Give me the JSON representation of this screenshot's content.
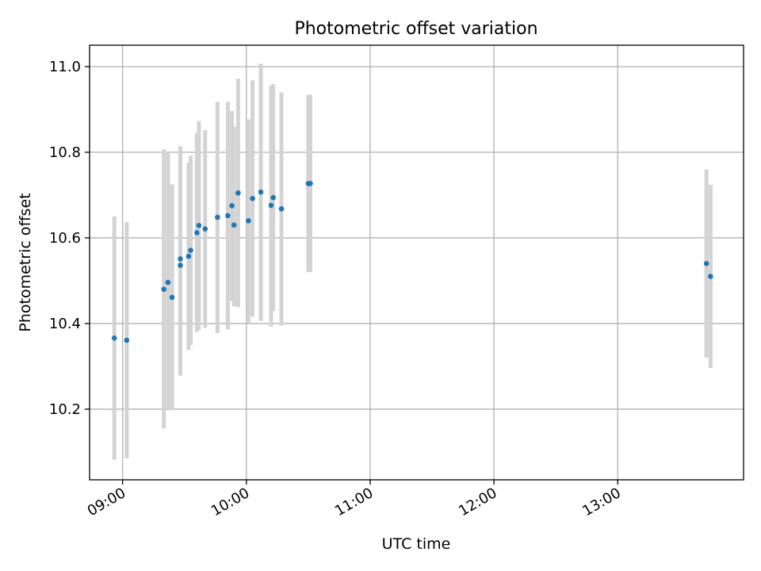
{
  "chart_data": {
    "type": "scatter",
    "title": "Photometric offset variation",
    "xlabel": "UTC time",
    "ylabel": "Photometric offset",
    "x_axis_kind": "time",
    "xlim": [
      "08:44",
      "14:01"
    ],
    "ylim": [
      10.035,
      11.05
    ],
    "xticks": [
      "09:00",
      "10:00",
      "11:00",
      "12:00",
      "13:00"
    ],
    "yticks": [
      "10.2",
      "10.4",
      "10.6",
      "10.8",
      "11.0"
    ],
    "grid": true,
    "marker_color": "#1f77b4",
    "errorbar_color": "#d3d3d3",
    "points": [
      {
        "t": "08:56",
        "y": 10.366,
        "lo": 10.082,
        "hi": 10.65
      },
      {
        "t": "09:02",
        "y": 10.361,
        "lo": 10.085,
        "hi": 10.637
      },
      {
        "t": "09:20",
        "y": 10.48,
        "lo": 10.155,
        "hi": 10.807
      },
      {
        "t": "09:22",
        "y": 10.496,
        "lo": 10.2,
        "hi": 10.798
      },
      {
        "t": "09:24",
        "y": 10.461,
        "lo": 10.197,
        "hi": 10.725
      },
      {
        "t": "09:28",
        "y": 10.536,
        "lo": 10.278,
        "hi": 10.814
      },
      {
        "t": "09:28",
        "y": 10.551,
        "lo": 10.31,
        "hi": 10.792
      },
      {
        "t": "09:32",
        "y": 10.557,
        "lo": 10.338,
        "hi": 10.776
      },
      {
        "t": "09:33",
        "y": 10.571,
        "lo": 10.35,
        "hi": 10.792
      },
      {
        "t": "09:36",
        "y": 10.612,
        "lo": 10.38,
        "hi": 10.845
      },
      {
        "t": "09:37",
        "y": 10.629,
        "lo": 10.385,
        "hi": 10.873
      },
      {
        "t": "09:40",
        "y": 10.621,
        "lo": 10.39,
        "hi": 10.852
      },
      {
        "t": "09:46",
        "y": 10.648,
        "lo": 10.378,
        "hi": 10.918
      },
      {
        "t": "09:51",
        "y": 10.652,
        "lo": 10.386,
        "hi": 10.918
      },
      {
        "t": "09:53",
        "y": 10.675,
        "lo": 10.453,
        "hi": 10.897
      },
      {
        "t": "09:54",
        "y": 10.63,
        "lo": 10.44,
        "hi": 10.86
      },
      {
        "t": "09:56",
        "y": 10.705,
        "lo": 10.438,
        "hi": 10.972
      },
      {
        "t": "10:01",
        "y": 10.64,
        "lo": 10.4,
        "hi": 10.877
      },
      {
        "t": "10:03",
        "y": 10.692,
        "lo": 10.416,
        "hi": 10.968
      },
      {
        "t": "10:07",
        "y": 10.707,
        "lo": 10.406,
        "hi": 11.007
      },
      {
        "t": "10:12",
        "y": 10.676,
        "lo": 10.393,
        "hi": 10.956
      },
      {
        "t": "10:13",
        "y": 10.694,
        "lo": 10.429,
        "hi": 10.959
      },
      {
        "t": "10:17",
        "y": 10.668,
        "lo": 10.395,
        "hi": 10.94
      },
      {
        "t": "10:30",
        "y": 10.727,
        "lo": 10.52,
        "hi": 10.934
      },
      {
        "t": "10:31",
        "y": 10.727,
        "lo": 10.52,
        "hi": 10.934
      },
      {
        "t": "13:43",
        "y": 10.54,
        "lo": 10.32,
        "hi": 10.76
      },
      {
        "t": "13:45",
        "y": 10.51,
        "lo": 10.296,
        "hi": 10.724
      }
    ]
  }
}
